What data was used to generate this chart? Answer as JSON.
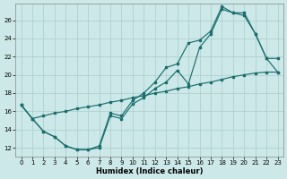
{
  "xlabel": "Humidex (Indice chaleur)",
  "bg_color": "#cce8e8",
  "grid_color": "#aacccc",
  "line_color": "#1a6e6e",
  "xlim": [
    -0.5,
    23.5
  ],
  "ylim": [
    11.0,
    27.8
  ],
  "yticks": [
    12,
    14,
    16,
    18,
    20,
    22,
    24,
    26
  ],
  "xticks": [
    0,
    1,
    2,
    3,
    4,
    5,
    6,
    7,
    8,
    9,
    10,
    11,
    12,
    13,
    14,
    15,
    16,
    17,
    18,
    19,
    20,
    21,
    22,
    23
  ],
  "line1_x": [
    0,
    1,
    2,
    3,
    4,
    5,
    6,
    7,
    8,
    9,
    10,
    11,
    12,
    13,
    14,
    15,
    16,
    17,
    18,
    19,
    20,
    21,
    22,
    23
  ],
  "line1_y": [
    16.7,
    15.2,
    15.5,
    15.8,
    16.0,
    16.3,
    16.5,
    16.7,
    17.0,
    17.2,
    17.5,
    17.7,
    18.0,
    18.2,
    18.5,
    18.7,
    19.0,
    19.2,
    19.5,
    19.8,
    20.0,
    20.2,
    20.3,
    20.3
  ],
  "line2_x": [
    0,
    1,
    2,
    3,
    4,
    5,
    6,
    7,
    8,
    9,
    10,
    11,
    12,
    13,
    14,
    15,
    16,
    17,
    18,
    19,
    20,
    21,
    22,
    23
  ],
  "line2_y": [
    16.7,
    15.2,
    13.8,
    13.2,
    12.2,
    11.8,
    11.8,
    12.0,
    15.5,
    15.2,
    16.8,
    17.5,
    18.5,
    19.2,
    20.5,
    19.0,
    23.0,
    24.5,
    27.2,
    26.8,
    26.5,
    24.5,
    21.8,
    21.8
  ],
  "line3_x": [
    0,
    1,
    2,
    3,
    4,
    5,
    6,
    7,
    8,
    9,
    10,
    11,
    12,
    13,
    14,
    15,
    16,
    17,
    18,
    19,
    20,
    21,
    22,
    23
  ],
  "line3_y": [
    16.7,
    15.2,
    13.8,
    13.2,
    12.2,
    11.8,
    11.8,
    12.2,
    15.8,
    15.5,
    17.2,
    18.0,
    19.2,
    20.8,
    21.2,
    23.5,
    23.8,
    24.8,
    27.5,
    26.8,
    26.8,
    24.5,
    21.8,
    20.3
  ]
}
